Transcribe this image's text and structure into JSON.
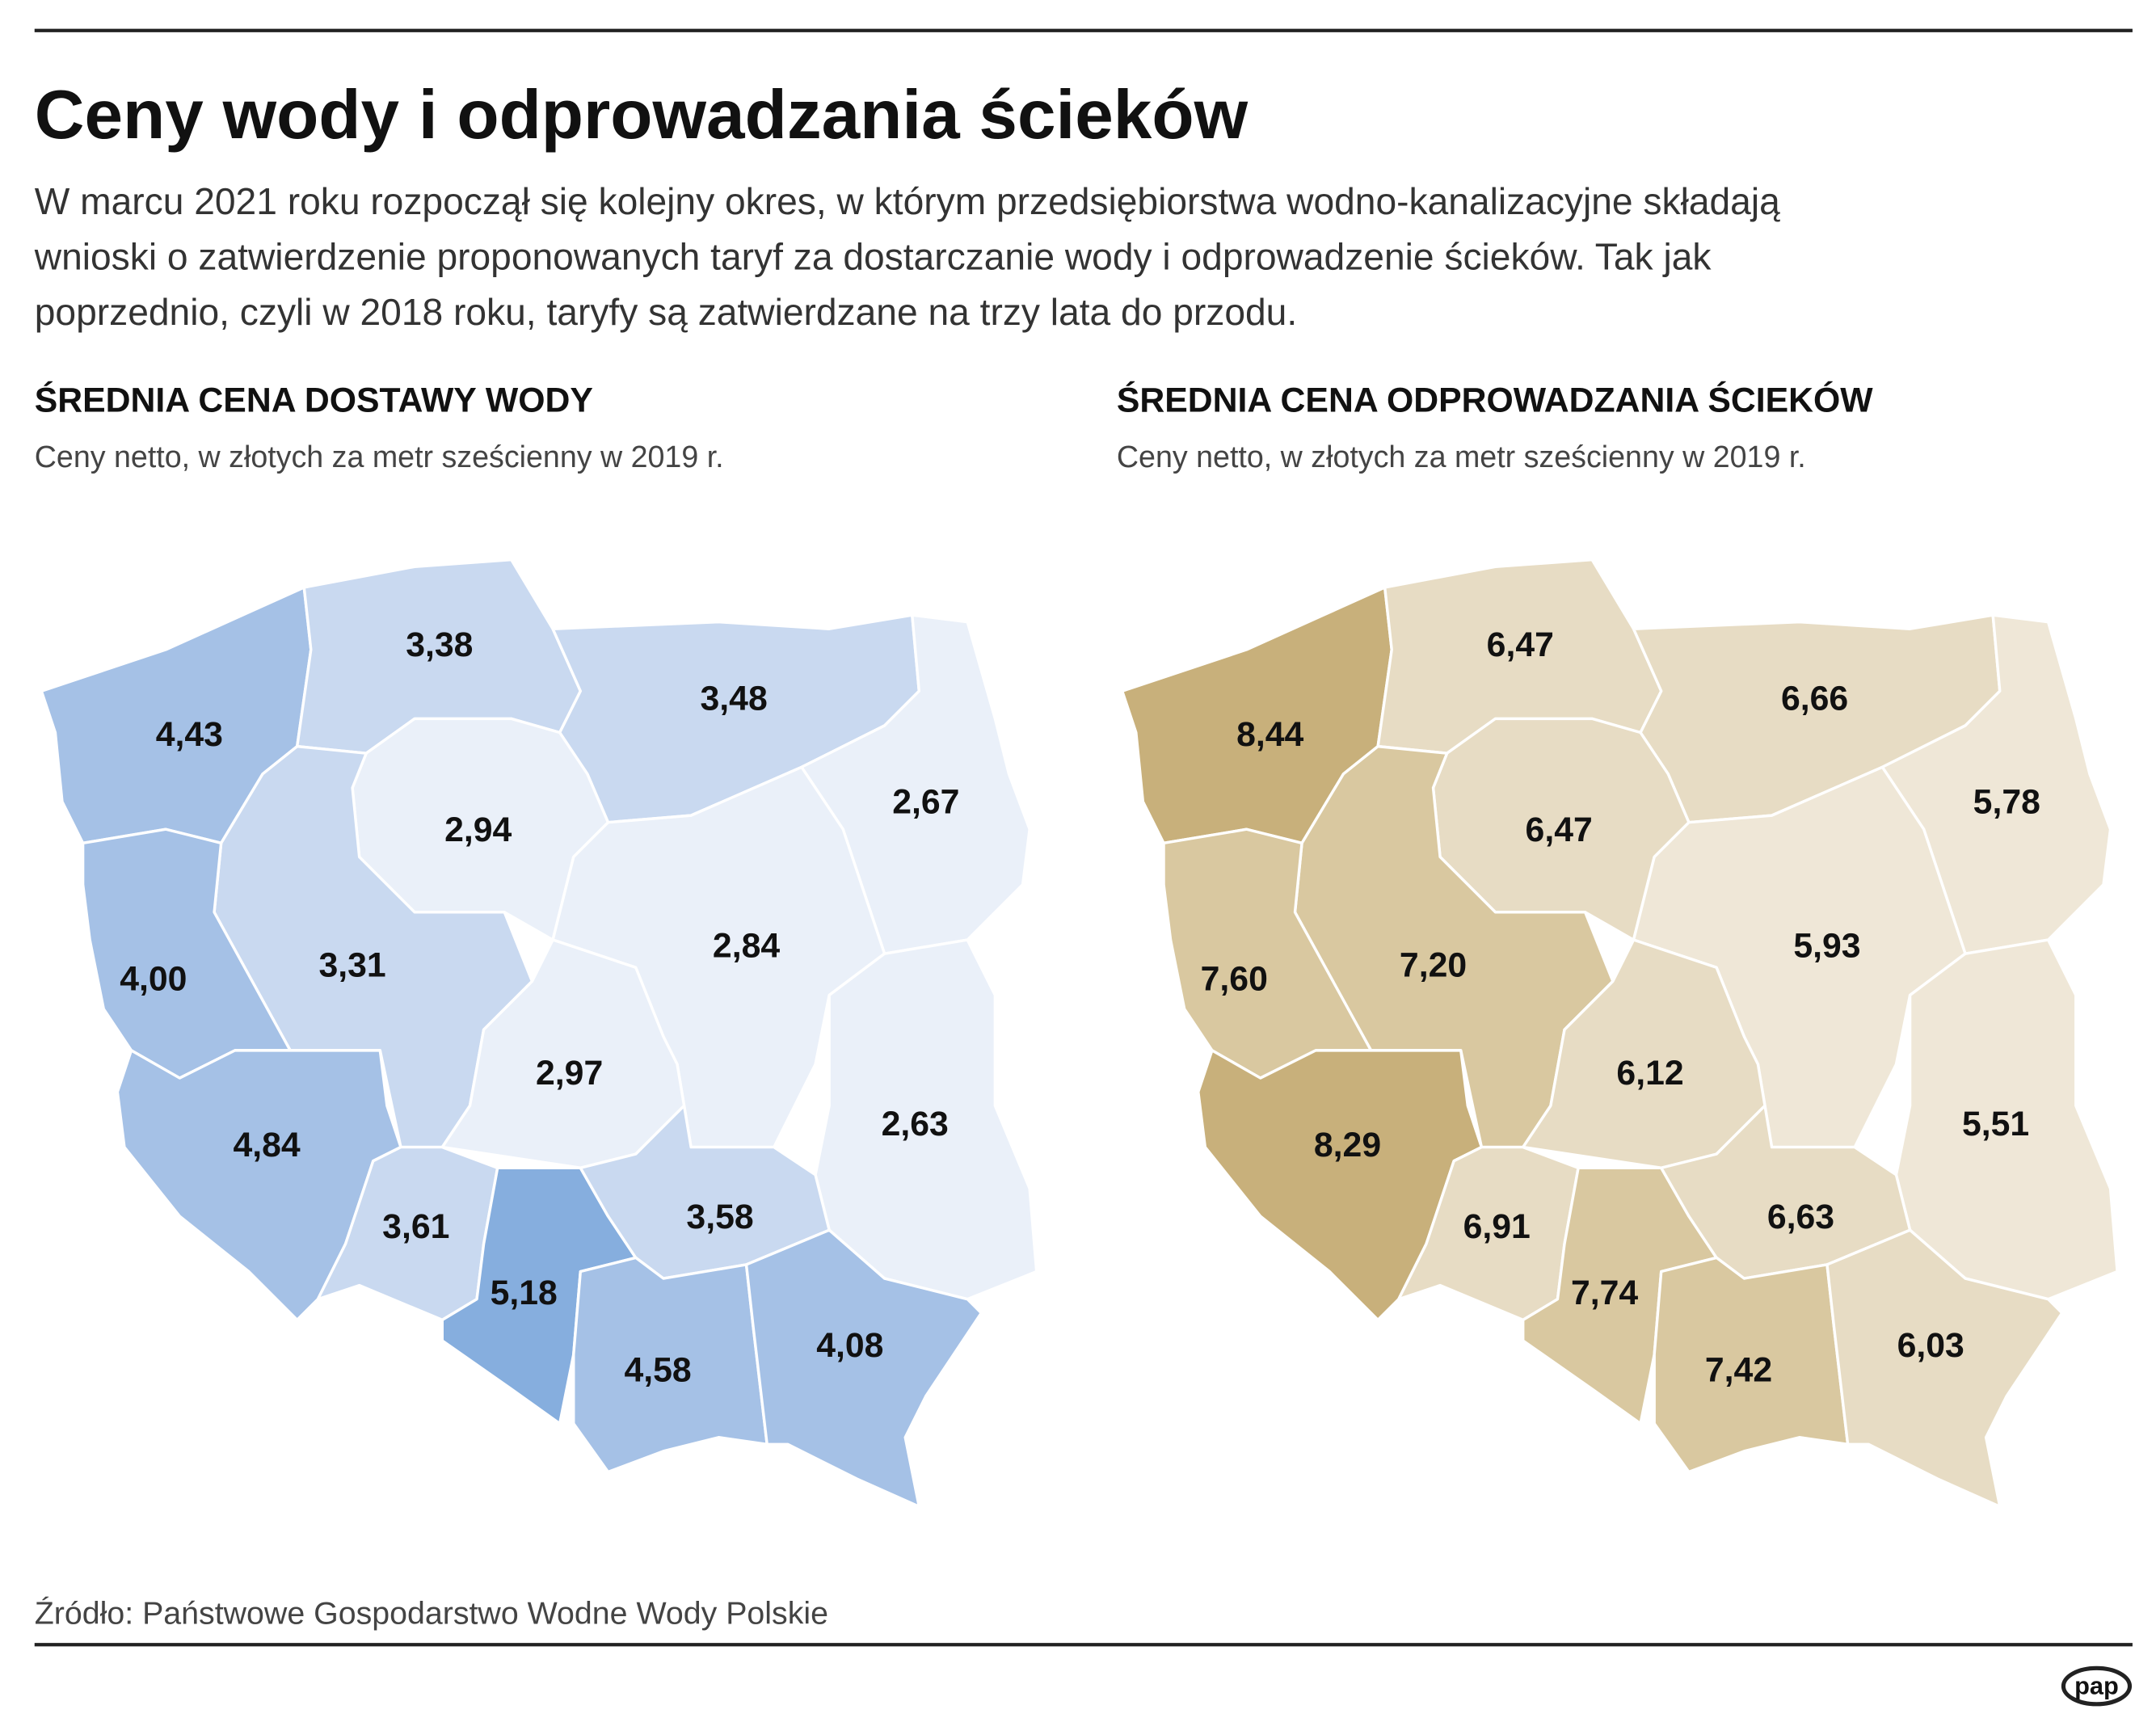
{
  "header": {
    "title": "Ceny wody i odprowadzania ścieków",
    "intro": [
      "W marcu 2021 roku rozpoczął się kolejny okres, w którym przedsiębiorstwa wodno-kanalizacyjne składają",
      "wnioski o zatwierdzenie proponowanych taryf za dostarczanie wody i odprowadzenie ścieków. Tak jak",
      "poprzednio, czyli w 2018 roku, taryfy są zatwierdzane na trzy lata do przodu."
    ]
  },
  "maps": [
    {
      "title": "ŚREDNIA CENA DOSTAWY WODY",
      "subtitle": "Ceny netto, w złotych za metr sześcienny w 2019 r.",
      "regions": [
        {
          "value": 4.43,
          "label": "4,43",
          "color": "#a5c1e6"
        },
        {
          "value": 3.38,
          "label": "3,38",
          "color": "#c9d9f0"
        },
        {
          "value": 3.48,
          "label": "3,48",
          "color": "#c9d9f0"
        },
        {
          "value": 2.67,
          "label": "2,67",
          "color": "#eaf0f9"
        },
        {
          "value": 2.94,
          "label": "2,94",
          "color": "#eaf0f9"
        },
        {
          "value": 3.31,
          "label": "3,31",
          "color": "#c9d9f0"
        },
        {
          "value": 4.0,
          "label": "4,00",
          "color": "#a5c1e6"
        },
        {
          "value": 2.84,
          "label": "2,84",
          "color": "#eaf0f9"
        },
        {
          "value": 2.97,
          "label": "2,97",
          "color": "#eaf0f9"
        },
        {
          "value": 2.63,
          "label": "2,63",
          "color": "#eaf0f9"
        },
        {
          "value": 4.84,
          "label": "4,84",
          "color": "#a5c1e6"
        },
        {
          "value": 3.61,
          "label": "3,61",
          "color": "#c9d9f0"
        },
        {
          "value": 5.18,
          "label": "5,18",
          "color": "#86aede"
        },
        {
          "value": 3.58,
          "label": "3,58",
          "color": "#c9d9f0"
        },
        {
          "value": 4.58,
          "label": "4,58",
          "color": "#a5c1e6"
        },
        {
          "value": 4.08,
          "label": "4,08",
          "color": "#a5c1e6"
        }
      ]
    },
    {
      "title": "ŚREDNIA CENA ODPROWADZANIA ŚCIEKÓW",
      "subtitle": "Ceny netto, w złotych za metr sześcienny w 2019 r.",
      "regions": [
        {
          "value": 8.44,
          "label": "8,44",
          "color": "#c8b07b"
        },
        {
          "value": 6.47,
          "label": "6,47",
          "color": "#e7dcc4"
        },
        {
          "value": 6.66,
          "label": "6,66",
          "color": "#e7dcc4"
        },
        {
          "value": 5.78,
          "label": "5,78",
          "color": "#efe7d7"
        },
        {
          "value": 6.47,
          "label": "6,47",
          "color": "#e7dcc4"
        },
        {
          "value": 7.2,
          "label": "7,20",
          "color": "#d9c8a0"
        },
        {
          "value": 7.6,
          "label": "7,60",
          "color": "#d9c8a0"
        },
        {
          "value": 5.93,
          "label": "5,93",
          "color": "#efe7d7"
        },
        {
          "value": 6.12,
          "label": "6,12",
          "color": "#e7dcc4"
        },
        {
          "value": 5.51,
          "label": "5,51",
          "color": "#efe7d7"
        },
        {
          "value": 8.29,
          "label": "8,29",
          "color": "#c8b07b"
        },
        {
          "value": 6.91,
          "label": "6,91",
          "color": "#e7dcc4"
        },
        {
          "value": 7.74,
          "label": "7,74",
          "color": "#d9c8a0"
        },
        {
          "value": 6.63,
          "label": "6,63",
          "color": "#e7dcc4"
        },
        {
          "value": 7.42,
          "label": "7,42",
          "color": "#d9c8a0"
        },
        {
          "value": 6.03,
          "label": "6,03",
          "color": "#e7dcc4"
        }
      ]
    }
  ],
  "footer": {
    "source": "Źródło: Państwowe Gospodarstwo Wodne Wody Polskie",
    "logo": "pap"
  }
}
